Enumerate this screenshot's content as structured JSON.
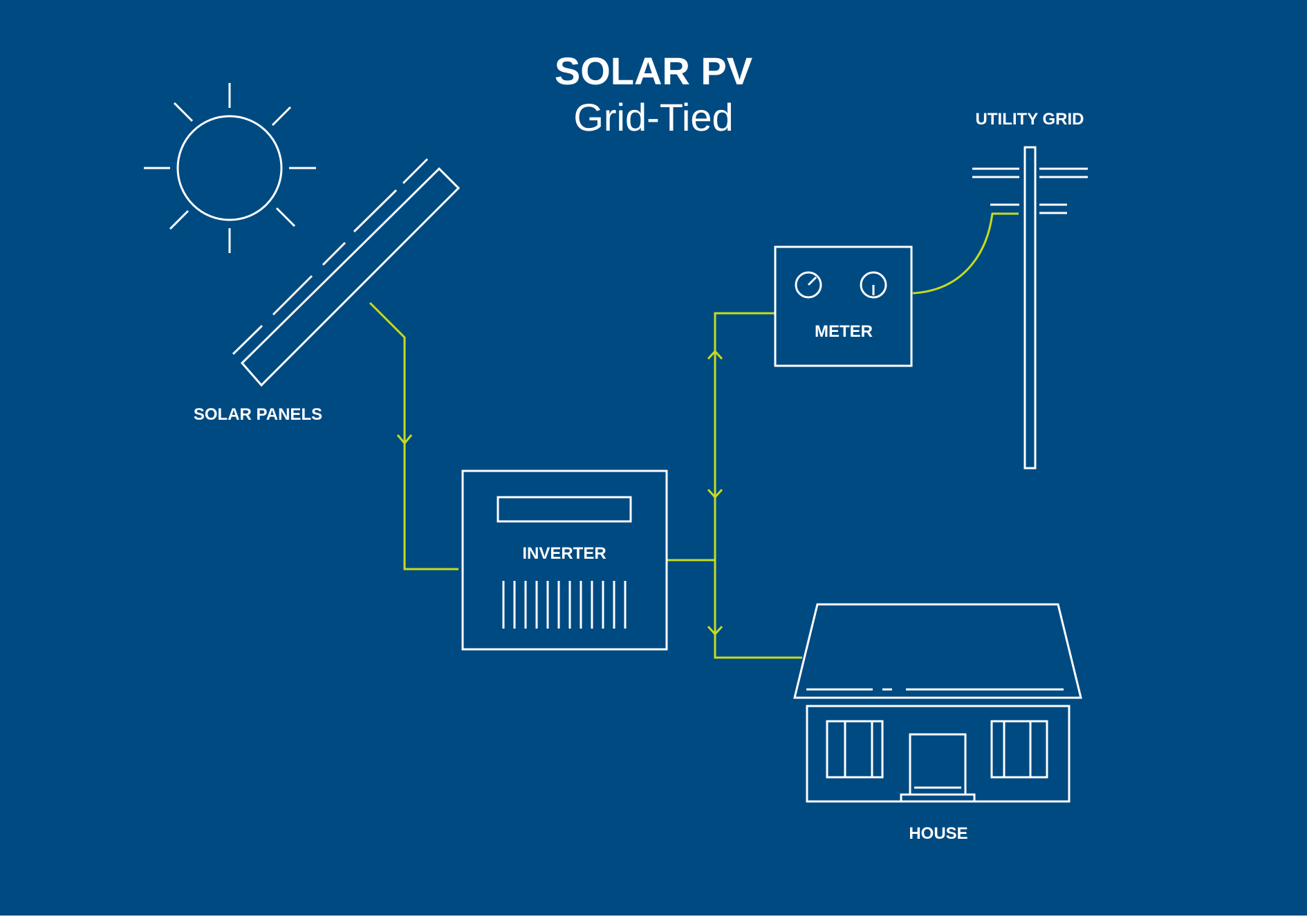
{
  "title": "SOLAR PV",
  "subtitle": "Grid-Tied",
  "components": {
    "solar_panels": "SOLAR PANELS",
    "inverter": "INVERTER",
    "meter": "METER",
    "utility_grid": "UTILITY GRID",
    "house": "HOUSE"
  },
  "colors": {
    "background": "#004a82",
    "outline": "#ffffff",
    "power_line": "#c6dc1e"
  },
  "icons": [
    "sun-icon",
    "solar-panel-icon",
    "inverter-icon",
    "meter-icon",
    "utility-pole-icon",
    "house-icon"
  ]
}
